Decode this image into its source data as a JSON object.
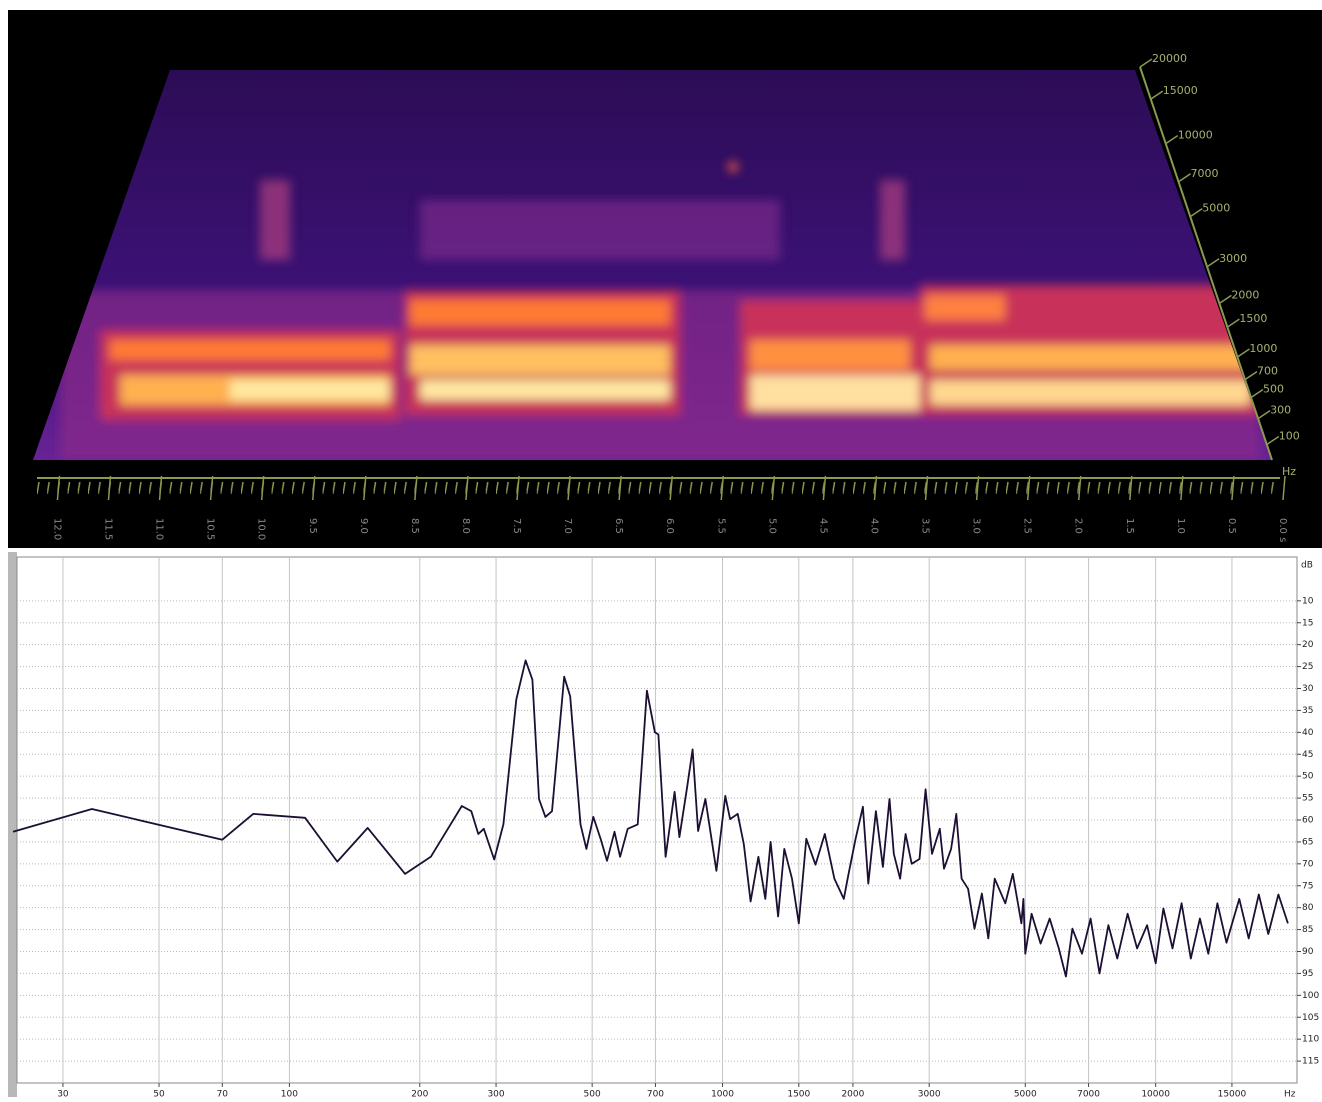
{
  "chart_data": [
    {
      "type": "spectrogram3d",
      "xlim": [
        12.2,
        0
      ],
      "xticks": [
        {
          "value": 12,
          "label": "12.0"
        },
        {
          "value": 11.5,
          "label": "11.5"
        },
        {
          "value": 11,
          "label": "11.0"
        },
        {
          "value": 10.5,
          "label": "10.5"
        },
        {
          "value": 10,
          "label": "10.0"
        },
        {
          "value": 9.5,
          "label": "9.5"
        },
        {
          "value": 9,
          "label": "9.0"
        },
        {
          "value": 8.5,
          "label": "8.5"
        },
        {
          "value": 8,
          "label": "8.0"
        },
        {
          "value": 7.5,
          "label": "7.5"
        },
        {
          "value": 7,
          "label": "7.0"
        },
        {
          "value": 6.5,
          "label": "6.5"
        },
        {
          "value": 6,
          "label": "6.0"
        },
        {
          "value": 5.5,
          "label": "5.5"
        },
        {
          "value": 5,
          "label": "5.0"
        },
        {
          "value": 4.5,
          "label": "4.5"
        },
        {
          "value": 4,
          "label": "4.0"
        },
        {
          "value": 3.5,
          "label": "3.5"
        },
        {
          "value": 3,
          "label": "3.0"
        },
        {
          "value": 2.5,
          "label": "2.5"
        },
        {
          "value": 2,
          "label": "2.0"
        },
        {
          "value": 1.5,
          "label": "1.5"
        },
        {
          "value": 1,
          "label": "1.0"
        },
        {
          "value": 0.5,
          "label": "0.5"
        },
        {
          "value": 0,
          "label": "0.0 s"
        }
      ],
      "ylim": [
        0,
        20000
      ],
      "yscale": "mel",
      "yticks": [
        100,
        300,
        500,
        700,
        1000,
        1500,
        2000,
        3000,
        5000,
        7000,
        10000,
        15000,
        20000
      ],
      "y_unit": "Hz"
    },
    {
      "type": "line",
      "color": "#1c0f33",
      "xscale": "log",
      "grid": true,
      "x": [
        23,
        35,
        70,
        82.5,
        108.7,
        129,
        151.6,
        185,
        212,
        250,
        263,
        273,
        281,
        297,
        312,
        334,
        351,
        364,
        377,
        390,
        404,
        431,
        445,
        470,
        485,
        503,
        523,
        541,
        563,
        580,
        604,
        637,
        669,
        698,
        711,
        739,
        775,
        795,
        827,
        853,
        878,
        913,
        968,
        1015,
        1041,
        1084,
        1120,
        1161,
        1210,
        1255,
        1291,
        1344,
        1389,
        1447,
        1500,
        1561,
        1639,
        1722,
        1813,
        1905,
        1950,
        2029,
        2109,
        2170,
        2260,
        2346,
        2429,
        2485,
        2570,
        2646,
        2734,
        2849,
        2943,
        3045,
        3175,
        3245,
        3371,
        3465,
        3565,
        3689,
        3817,
        3970,
        4107,
        4250,
        4497,
        4679,
        4897,
        4950,
        5000,
        5172,
        5425,
        5693,
        5977,
        6207,
        6423,
        6760,
        7075,
        7420,
        7777,
        8155,
        8614,
        9060,
        9555,
        10000,
        10419,
        10934,
        11478,
        12052,
        12652,
        13228,
        13887,
        14576,
        15600,
        16400,
        17300,
        18200,
        19200,
        20200
      ],
      "values": [
        62.7,
        57.5,
        64.5,
        58.6,
        59.5,
        69.5,
        61.8,
        72.3,
        68.4,
        56.8,
        58,
        63.2,
        62,
        69,
        61,
        32.5,
        23.6,
        28,
        55.2,
        59.3,
        58,
        27.3,
        31.8,
        61,
        66.6,
        59.3,
        64.3,
        69.3,
        62.7,
        68.4,
        62,
        61,
        30.5,
        40,
        40.5,
        68.4,
        53.6,
        63.9,
        53,
        43.9,
        62.5,
        55.2,
        71.6,
        54.5,
        59.8,
        58.6,
        65.5,
        78.6,
        68.4,
        78,
        65,
        82,
        66.6,
        73.4,
        83.6,
        64.3,
        70.2,
        63.2,
        73.4,
        78,
        72.7,
        64.3,
        57,
        74.5,
        58,
        70.7,
        55.2,
        67.7,
        73.4,
        63.2,
        70,
        68.9,
        53,
        67.7,
        62,
        71.1,
        66.6,
        58.6,
        73.4,
        75.7,
        84.8,
        76.8,
        87,
        73.4,
        79,
        72.3,
        83.6,
        78,
        90.5,
        81.4,
        88.2,
        82.5,
        89.3,
        95.7,
        84.8,
        90.5,
        82.5,
        95,
        84,
        91.6,
        81.4,
        89.3,
        84,
        92.7,
        80.2,
        89.3,
        79,
        91.6,
        82.5,
        90.5,
        79,
        88,
        78,
        87,
        77,
        86,
        77,
        83.6
      ],
      "xlim": [
        23.5,
        21200
      ],
      "xticks": [
        30,
        50,
        70,
        100,
        200,
        300,
        500,
        700,
        1000,
        1500,
        2000,
        3000,
        5000,
        7000,
        10000,
        15000
      ],
      "x_unit": "Hz",
      "ylim": [
        120,
        0
      ],
      "yticks": [
        10,
        15,
        20,
        25,
        30,
        35,
        40,
        45,
        50,
        55,
        60,
        65,
        70,
        75,
        80,
        85,
        90,
        95,
        100,
        105,
        110,
        115
      ],
      "y_unit": "dB"
    }
  ]
}
